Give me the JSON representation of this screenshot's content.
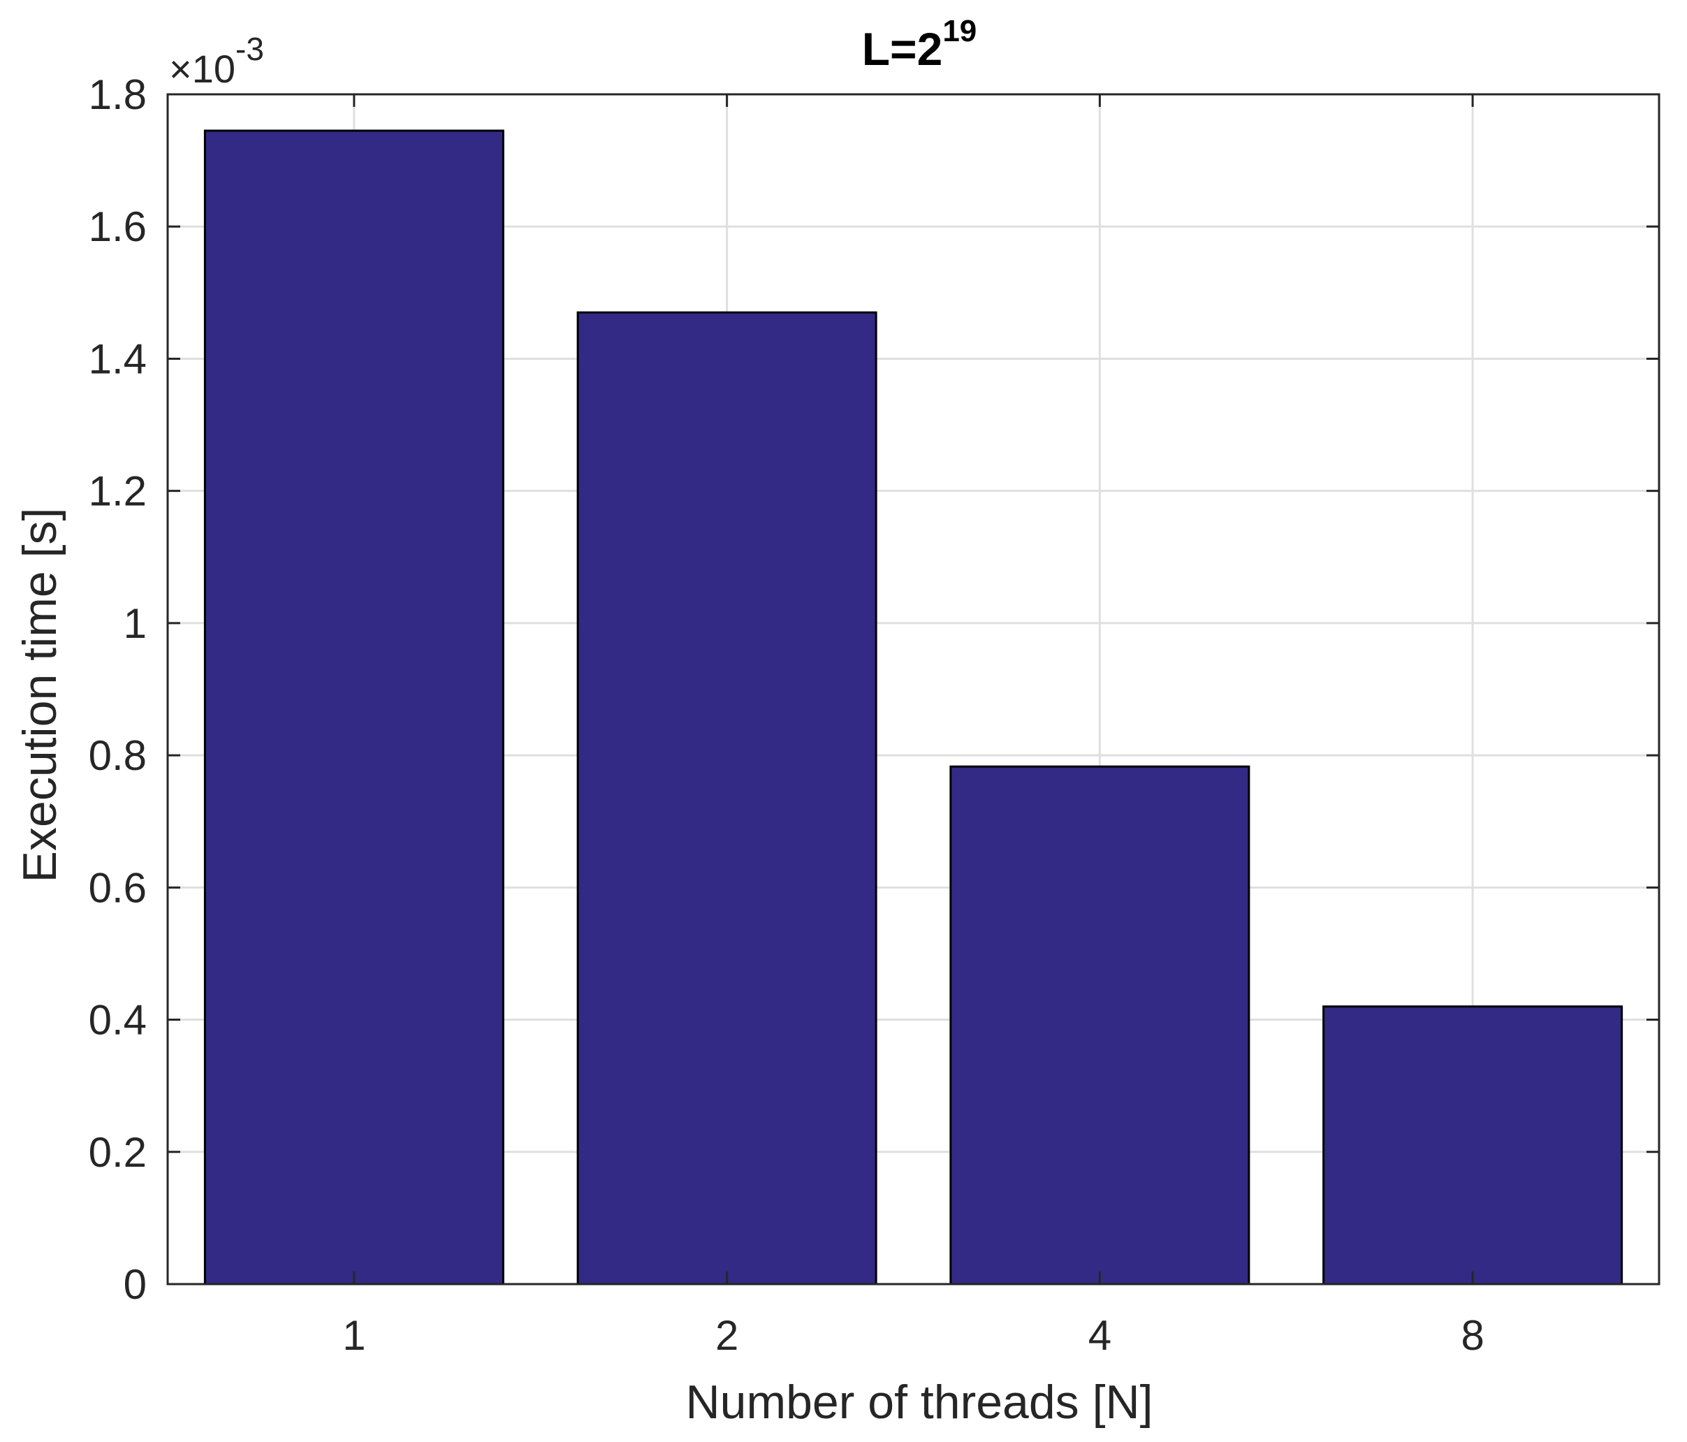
{
  "chart_data": {
    "type": "bar",
    "title": {
      "base": "L=2",
      "exponent": "19"
    },
    "xlabel": "Number of threads [N]",
    "ylabel": "Execution time [s]",
    "categories": [
      "1",
      "2",
      "4",
      "8"
    ],
    "values": [
      1.745,
      1.47,
      0.783,
      0.42
    ],
    "y_multiplier": {
      "symbol": "×10",
      "exponent": "-3"
    },
    "ylim": [
      0,
      1.8
    ],
    "yticks": [
      0,
      0.2,
      0.4,
      0.6,
      0.8,
      1,
      1.2,
      1.4,
      1.6,
      1.8
    ],
    "ytick_labels": [
      "0",
      "0.2",
      "0.4",
      "0.6",
      "0.8",
      "1",
      "1.2",
      "1.4",
      "1.6",
      "1.8"
    ],
    "grid": true,
    "colors": {
      "bar_fill": "#332A85",
      "bar_edge": "#000000",
      "axis": "#262626",
      "grid": "#DFDFDF",
      "background": "#FFFFFF"
    }
  }
}
